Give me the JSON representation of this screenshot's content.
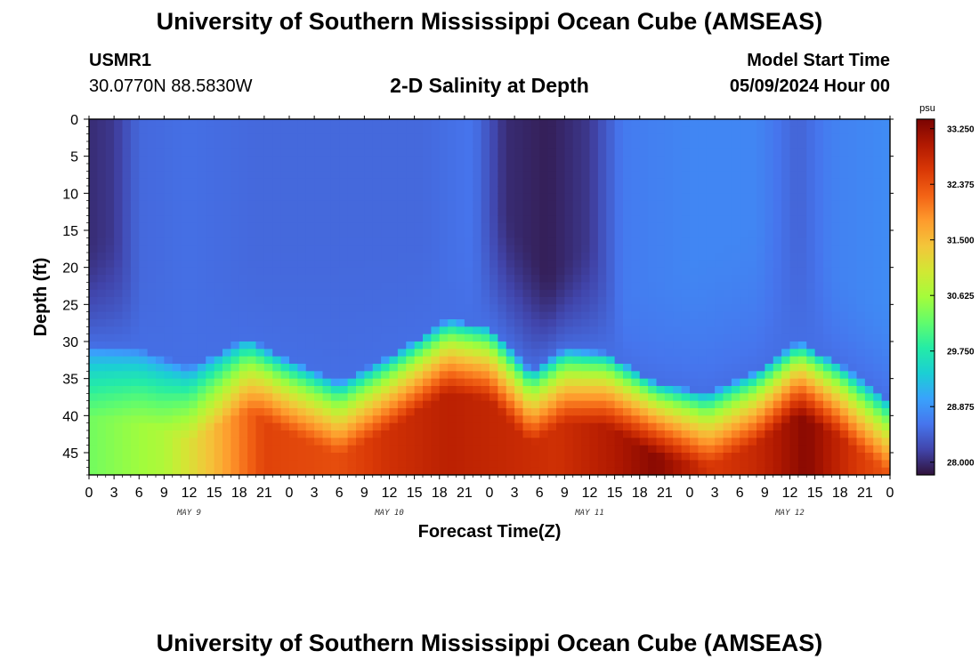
{
  "header": {
    "title": "University of Southern Mississippi Ocean Cube (AMSEAS)",
    "station_id": "USMR1",
    "coords": "30.0770N  88.5830W",
    "subtitle": "2-D Salinity at Depth",
    "model_start_label": "Model Start Time",
    "model_start_value": "05/09/2024 Hour 00"
  },
  "footer": {
    "title": "University of Southern Mississippi Ocean Cube (AMSEAS)"
  },
  "chart_data": {
    "type": "heatmap",
    "title": "2-D Salinity at Depth",
    "xlabel": "Forecast Time(Z)",
    "ylabel": "Depth (ft)",
    "x_hours_range": [
      0,
      96
    ],
    "x_tick_step_hours": 3,
    "x_tick_labels": [
      "0",
      "3",
      "6",
      "9",
      "12",
      "15",
      "18",
      "21",
      "0",
      "3",
      "6",
      "9",
      "12",
      "15",
      "18",
      "21",
      "0",
      "3",
      "6",
      "9",
      "12",
      "15",
      "18",
      "21",
      "0",
      "3",
      "6",
      "9",
      "12",
      "15",
      "18",
      "21",
      "0"
    ],
    "day_labels": [
      {
        "label": "MAY 9",
        "hour": 12
      },
      {
        "label": "MAY 10",
        "hour": 36
      },
      {
        "label": "MAY 11",
        "hour": 60
      },
      {
        "label": "MAY 12",
        "hour": 84
      }
    ],
    "ylim": [
      0,
      48
    ],
    "y_ticks": [
      0,
      5,
      10,
      15,
      20,
      25,
      30,
      35,
      40,
      45
    ],
    "colorbar": {
      "unit": "psu",
      "range": [
        27.8,
        33.4
      ],
      "tick_values": [
        28.0,
        28.875,
        29.75,
        30.625,
        31.5,
        32.375,
        33.25
      ],
      "tick_labels": [
        "28.000",
        "28.875",
        "29.750",
        "30.625",
        "31.500",
        "32.375",
        "33.250"
      ],
      "colors": [
        "#30123b",
        "#4145ab",
        "#4675ed",
        "#39a2fc",
        "#1bcfd4",
        "#24eca6",
        "#61fc6c",
        "#a4fc3b",
        "#d1e834",
        "#f3c63a",
        "#fe9b2d",
        "#f36315",
        "#d93806",
        "#b11901",
        "#7a0402"
      ]
    },
    "halocline_depth_ft": [
      {
        "hour": 0,
        "value": 30.5
      },
      {
        "hour": 6,
        "value": 31
      },
      {
        "hour": 12,
        "value": 33.5
      },
      {
        "hour": 19,
        "value": 29.5
      },
      {
        "hour": 23,
        "value": 32
      },
      {
        "hour": 30,
        "value": 35.5
      },
      {
        "hour": 36,
        "value": 32
      },
      {
        "hour": 43,
        "value": 27
      },
      {
        "hour": 48,
        "value": 28
      },
      {
        "hour": 53,
        "value": 34
      },
      {
        "hour": 57,
        "value": 31
      },
      {
        "hour": 62,
        "value": 31.5
      },
      {
        "hour": 68,
        "value": 35.5
      },
      {
        "hour": 74,
        "value": 37
      },
      {
        "hour": 80,
        "value": 34
      },
      {
        "hour": 85,
        "value": 30
      },
      {
        "hour": 90,
        "value": 33
      },
      {
        "hour": 96,
        "value": 38
      }
    ],
    "surface_salinity": [
      {
        "hour": 0,
        "value": 28.0
      },
      {
        "hour": 3,
        "value": 28.1
      },
      {
        "hour": 6,
        "value": 28.5
      },
      {
        "hour": 12,
        "value": 28.55
      },
      {
        "hour": 20,
        "value": 28.5
      },
      {
        "hour": 30,
        "value": 28.5
      },
      {
        "hour": 40,
        "value": 28.5
      },
      {
        "hour": 46,
        "value": 28.6
      },
      {
        "hour": 50,
        "value": 28.0
      },
      {
        "hour": 55,
        "value": 27.9
      },
      {
        "hour": 60,
        "value": 28.1
      },
      {
        "hour": 64,
        "value": 28.65
      },
      {
        "hour": 72,
        "value": 28.75
      },
      {
        "hour": 80,
        "value": 28.75
      },
      {
        "hour": 85,
        "value": 28.45
      },
      {
        "hour": 89,
        "value": 28.7
      },
      {
        "hour": 96,
        "value": 28.8
      }
    ],
    "surface_layer_depth_ft": [
      {
        "hour": 0,
        "value": 16
      },
      {
        "hour": 3,
        "value": 15
      },
      {
        "hour": 6,
        "value": 22
      },
      {
        "hour": 50,
        "value": 12
      },
      {
        "hour": 55,
        "value": 21
      },
      {
        "hour": 60,
        "value": 16
      },
      {
        "hour": 64,
        "value": 24
      },
      {
        "hour": 85,
        "value": 10
      },
      {
        "hour": 89,
        "value": 20
      },
      {
        "hour": 96,
        "value": 25
      }
    ],
    "bottom_salinity": [
      {
        "hour": 0,
        "value": 30.3
      },
      {
        "hour": 9,
        "value": 30.7
      },
      {
        "hour": 15,
        "value": 31.5
      },
      {
        "hour": 21,
        "value": 32.5
      },
      {
        "hour": 30,
        "value": 32.4
      },
      {
        "hour": 36,
        "value": 32.7
      },
      {
        "hour": 43,
        "value": 32.9
      },
      {
        "hour": 50,
        "value": 32.8
      },
      {
        "hour": 56,
        "value": 32.7
      },
      {
        "hour": 63,
        "value": 33.0
      },
      {
        "hour": 68,
        "value": 33.3
      },
      {
        "hour": 75,
        "value": 32.6
      },
      {
        "hour": 80,
        "value": 32.8
      },
      {
        "hour": 86,
        "value": 33.3
      },
      {
        "hour": 92,
        "value": 32.6
      },
      {
        "hour": 96,
        "value": 32.3
      }
    ]
  }
}
